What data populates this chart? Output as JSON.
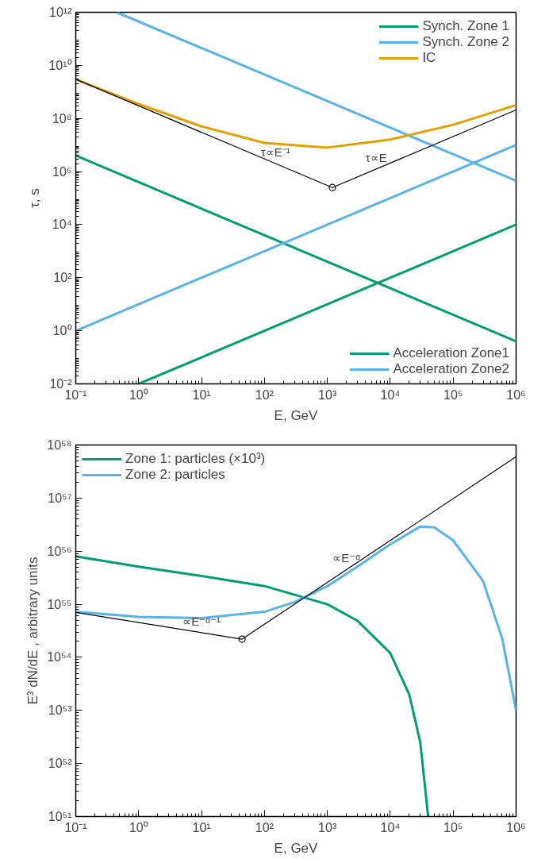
{
  "chart_data": [
    {
      "type": "line",
      "xlabel": "E, GeV",
      "ylabel": "τ, s",
      "log": "xy",
      "grid": false,
      "legend": "top right",
      "xlim": [
        0.1,
        1000000
      ],
      "ylim": [
        0.01,
        1000000000000
      ],
      "xticks": [
        {
          "value": 0.1,
          "label": "10⁻¹"
        },
        {
          "value": 1,
          "label": "10⁰"
        },
        {
          "value": 10,
          "label": "10¹"
        },
        {
          "value": 100,
          "label": "10²"
        },
        {
          "value": 1000,
          "label": "10³"
        },
        {
          "value": 10000,
          "label": "10⁴"
        },
        {
          "value": 100000,
          "label": "10⁵"
        },
        {
          "value": 1000000,
          "label": "10⁶"
        }
      ],
      "yticks": [
        {
          "value": 0.01,
          "label": "10⁻²"
        },
        {
          "value": 1,
          "label": "10⁰"
        },
        {
          "value": 100,
          "label": "10²"
        },
        {
          "value": 10000,
          "label": "10⁴"
        },
        {
          "value": 1000000,
          "label": "10⁶"
        },
        {
          "value": 100000000,
          "label": "10⁸"
        },
        {
          "value": 10000000000,
          "label": "10¹⁰"
        },
        {
          "value": 1000000000000,
          "label": "10¹²"
        }
      ],
      "series": [
        {
          "name": "Synch. Zone 1",
          "color": "#009e73",
          "x": [
            0.1,
            1000000
          ],
          "values": [
            4000000,
            0.4
          ]
        },
        {
          "name": "Synch. Zone 2",
          "color": "#56b4e9",
          "x": [
            0.45,
            1000000
          ],
          "values": [
            1000000000000,
            450000
          ]
        },
        {
          "name": "IC",
          "color": "#e69f00",
          "x": [
            0.1,
            1,
            10,
            100,
            1000,
            10000,
            100000,
            1000000
          ],
          "values": [
            3000000000,
            350000000,
            50000000,
            12000000,
            8000000,
            16000000,
            58000000,
            320000000
          ]
        },
        {
          "name": "Acceleration Zone1",
          "color": "#009e73",
          "x": [
            1,
            1000000
          ],
          "values": [
            0.01,
            10000
          ]
        },
        {
          "name": "Acceleration Zone2",
          "color": "#56b4e9",
          "x": [
            0.1,
            1000000
          ],
          "values": [
            1,
            10000000
          ]
        },
        {
          "color": "#000000",
          "x": [
            0.1,
            1200,
            1000000
          ],
          "values": [
            3000000000,
            250000,
            210000000
          ]
        },
        {
          "type": "scatter",
          "marker": "circle",
          "color": "#000000",
          "x": [
            1200
          ],
          "values": [
            250000
          ]
        }
      ],
      "annotations": [
        {
          "text": "τ∝E⁻¹",
          "x": 150,
          "y": 2000000
        },
        {
          "text": "τ∝E",
          "x": 6000,
          "y": 1250000
        }
      ]
    },
    {
      "type": "line",
      "xlabel": "E, GeV",
      "ylabel": "E³ dN/dE , arbitrary units",
      "log": "xy",
      "grid": false,
      "legend": "top left",
      "xlim": [
        0.1,
        1000000
      ],
      "ylim": [
        1e+51,
        1e+58
      ],
      "xticks": [
        {
          "value": 0.1,
          "label": "10⁻¹"
        },
        {
          "value": 1,
          "label": "10⁰"
        },
        {
          "value": 10,
          "label": "10¹"
        },
        {
          "value": 100,
          "label": "10²"
        },
        {
          "value": 1000,
          "label": "10³"
        },
        {
          "value": 10000,
          "label": "10⁴"
        },
        {
          "value": 100000,
          "label": "10⁵"
        },
        {
          "value": 1000000,
          "label": "10⁶"
        }
      ],
      "yticks": [
        {
          "value": 1e+51,
          "label": "10⁵¹"
        },
        {
          "value": 1e+52,
          "label": "10⁵²"
        },
        {
          "value": 1e+53,
          "label": "10⁵³"
        },
        {
          "value": 1e+54,
          "label": "10⁵⁴"
        },
        {
          "value": 1e+55,
          "label": "10⁵⁵"
        },
        {
          "value": 1e+56,
          "label": "10⁵⁶"
        },
        {
          "value": 1e+57,
          "label": "10⁵⁷"
        },
        {
          "value": 1e+58,
          "label": "10⁵⁸"
        }
      ],
      "series": [
        {
          "name": "Zone 1: particles (×10³)",
          "color": "#009e73",
          "x": [
            0.1,
            1,
            10,
            100,
            1000,
            3000,
            10000,
            20000,
            30000,
            40000
          ],
          "values": [
            8e+55,
            5.1e+55,
            3.4e+55,
            2.2e+55,
            1e+55,
            4.9e+54,
            1.2e+54,
            2e+53,
            2.5e+52,
            1e+51
          ]
        },
        {
          "name": "Zone 2: particles",
          "color": "#56b4e9",
          "x": [
            0.1,
            1,
            10,
            100,
            300,
            1000,
            3000,
            10000,
            30000,
            50000,
            100000,
            300000,
            600000,
            1000000
          ],
          "values": [
            7.2e+54,
            5.8e+54,
            5.5e+54,
            7.2e+54,
            1.1e+55,
            2.2e+55,
            5.1e+55,
            1.35e+56,
            2.9e+56,
            2.8e+56,
            1.6e+56,
            2.7e+55,
            2.3e+54,
            1e+53
          ]
        },
        {
          "color": "#000000",
          "x": [
            0.1,
            44,
            1000000
          ],
          "values": [
            7e+54,
            2.2e+54,
            6e+57
          ]
        },
        {
          "type": "scatter",
          "marker": "circle",
          "color": "#000000",
          "x": [
            44
          ],
          "values": [
            2.2e+54
          ]
        }
      ],
      "annotations": [
        {
          "text": "∝E⁻ᵅ⁻¹",
          "x": 10,
          "y": 2.9e+54
        },
        {
          "text": "∝E⁻ᵅ",
          "x": 2000,
          "y": 4.5e+55
        }
      ]
    }
  ]
}
